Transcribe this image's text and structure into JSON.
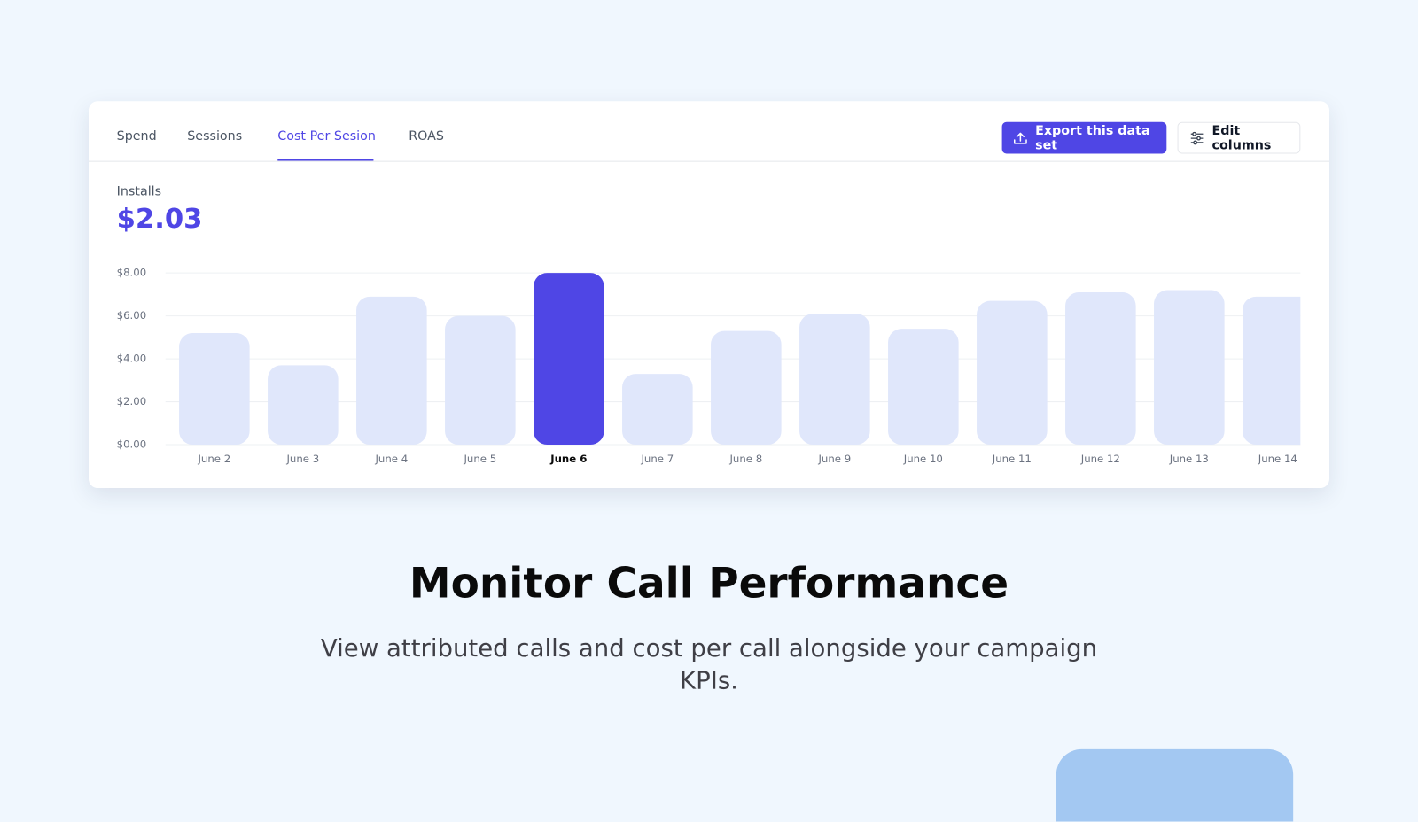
{
  "tabs": [
    "Spend",
    "Sessions",
    "Cost Per Sesion",
    "ROAS"
  ],
  "active_tab": 2,
  "buttons": {
    "export": "Export this data set",
    "edit": "Edit columns"
  },
  "metric": {
    "label": "Installs",
    "value": "$2.03"
  },
  "chart_data": {
    "type": "bar",
    "categories": [
      "June 2",
      "June 3",
      "June 4",
      "June 5",
      "June 6",
      "June 7",
      "June 8",
      "June 9",
      "June 10",
      "June 11",
      "June 12",
      "June 13",
      "June 14"
    ],
    "values": [
      5.2,
      3.7,
      6.9,
      6.0,
      8.0,
      3.3,
      5.3,
      6.1,
      5.4,
      6.7,
      7.1,
      7.2,
      6.9
    ],
    "color": "#e0e7fb",
    "highlight_color": "#4f46e5",
    "highlight_index": 4,
    "ylim": [
      0,
      8
    ],
    "yticks": [
      {
        "value": 0,
        "label": "$0.00"
      },
      {
        "value": 2,
        "label": "$2.00"
      },
      {
        "value": 4,
        "label": "$4.00"
      },
      {
        "value": 6,
        "label": "$6.00"
      },
      {
        "value": 8,
        "label": "$8.00"
      }
    ],
    "grid": true
  },
  "section": {
    "heading": "Monitor Call Performance",
    "text": "View attributed calls and cost per call alongside your campaign KPIs."
  }
}
